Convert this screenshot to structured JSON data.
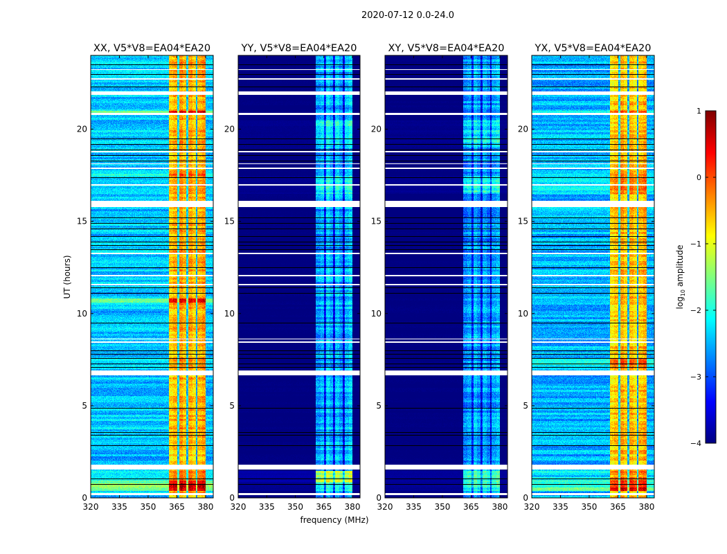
{
  "chart_data": {
    "type": "heatmap",
    "title": "2020-07-12 0.0-24.0",
    "xlabel": "frequency (MHz)",
    "ylabel": "UT (hours)",
    "xlim": [
      320,
      384
    ],
    "ylim": [
      0,
      24
    ],
    "xticks": [
      "320",
      "335",
      "350",
      "365",
      "380"
    ],
    "xtick_values": [
      320,
      335,
      350,
      365,
      380
    ],
    "yticks": [
      "0",
      "5",
      "10",
      "15",
      "20"
    ],
    "ytick_values": [
      0,
      5,
      10,
      15,
      20
    ],
    "colorbar": {
      "label_main": "log",
      "label_sub": "10",
      "label_rest": " amplitude",
      "range": [
        -4,
        1
      ],
      "ticks": [
        "1",
        "0",
        "−1",
        "−2",
        "−3",
        "−4"
      ],
      "tick_values": [
        1,
        0,
        -1,
        -2,
        -3,
        -4
      ],
      "colormap": "jet"
    },
    "band_edges_mhz": [
      360.5,
      365.5,
      370.2,
      375.2,
      380
    ],
    "flagged_hours": [
      [
        0.12,
        0.25
      ],
      [
        1.55,
        1.8
      ],
      [
        6.62,
        6.9
      ],
      [
        8.42,
        8.5
      ],
      [
        8.6,
        8.65
      ],
      [
        11.55,
        11.62
      ],
      [
        12.0,
        12.08
      ],
      [
        13.22,
        13.3
      ],
      [
        15.78,
        16.12
      ],
      [
        16.95,
        17.02
      ],
      [
        17.85,
        17.92
      ],
      [
        18.08,
        18.13
      ],
      [
        18.72,
        18.8
      ],
      [
        20.78,
        20.88
      ],
      [
        21.85,
        22.05
      ],
      [
        22.7,
        22.76
      ],
      [
        23.2,
        23.25
      ]
    ],
    "dropout_hours": [
      0.75,
      1.05,
      2.85,
      3.4,
      3.55,
      4.9,
      7.1,
      7.3,
      7.6,
      7.8,
      8.0,
      9.5,
      11.1,
      11.4,
      12.5,
      13.5,
      13.7,
      13.9,
      14.2,
      14.6,
      14.9,
      15.2,
      17.4,
      18.3,
      18.6,
      18.9,
      19.2,
      19.5,
      22.3,
      23.0,
      23.5
    ],
    "panels": [
      {
        "title": "XX, V5*V8=EA04*EA20",
        "background_log_amp": -2.4,
        "band_log_amp": -0.5,
        "gap_log_amp": -2.3,
        "time_events": [
          [
            0.4,
            0.95,
            1.0
          ],
          [
            0.95,
            1.5,
            0.3
          ],
          [
            2.0,
            3.0,
            -0.1
          ],
          [
            10.6,
            10.85,
            0.8
          ],
          [
            20.85,
            21.0,
            0.8
          ],
          [
            16.5,
            17.8,
            0.3
          ]
        ]
      },
      {
        "title": "YY, V5*V8=EA04*EA20",
        "background_log_amp": -4.0,
        "band_log_amp": -2.5,
        "gap_log_amp": -3.4,
        "time_events": [
          [
            0.9,
            1.5,
            1.3
          ],
          [
            0.4,
            0.9,
            0.6
          ],
          [
            16.5,
            17.5,
            0.5
          ],
          [
            19.0,
            20.5,
            0.4
          ]
        ]
      },
      {
        "title": "XY, V5*V8=EA04*EA20",
        "background_log_amp": -4.0,
        "band_log_amp": -2.6,
        "gap_log_amp": -3.4,
        "time_events": [
          [
            0.9,
            1.5,
            0.9
          ],
          [
            0.4,
            0.9,
            0.6
          ],
          [
            16.5,
            17.5,
            0.5
          ],
          [
            19.0,
            20.5,
            0.4
          ]
        ]
      },
      {
        "title": "YX, V5*V8=EA04*EA20",
        "background_log_amp": -2.5,
        "band_log_amp": -0.6,
        "gap_log_amp": -2.4,
        "time_events": [
          [
            0.4,
            0.95,
            1.0
          ],
          [
            0.95,
            1.5,
            0.3
          ],
          [
            7.0,
            7.6,
            0.4
          ],
          [
            16.5,
            17.8,
            0.3
          ],
          [
            20.85,
            21.0,
            0.6
          ]
        ]
      }
    ]
  }
}
